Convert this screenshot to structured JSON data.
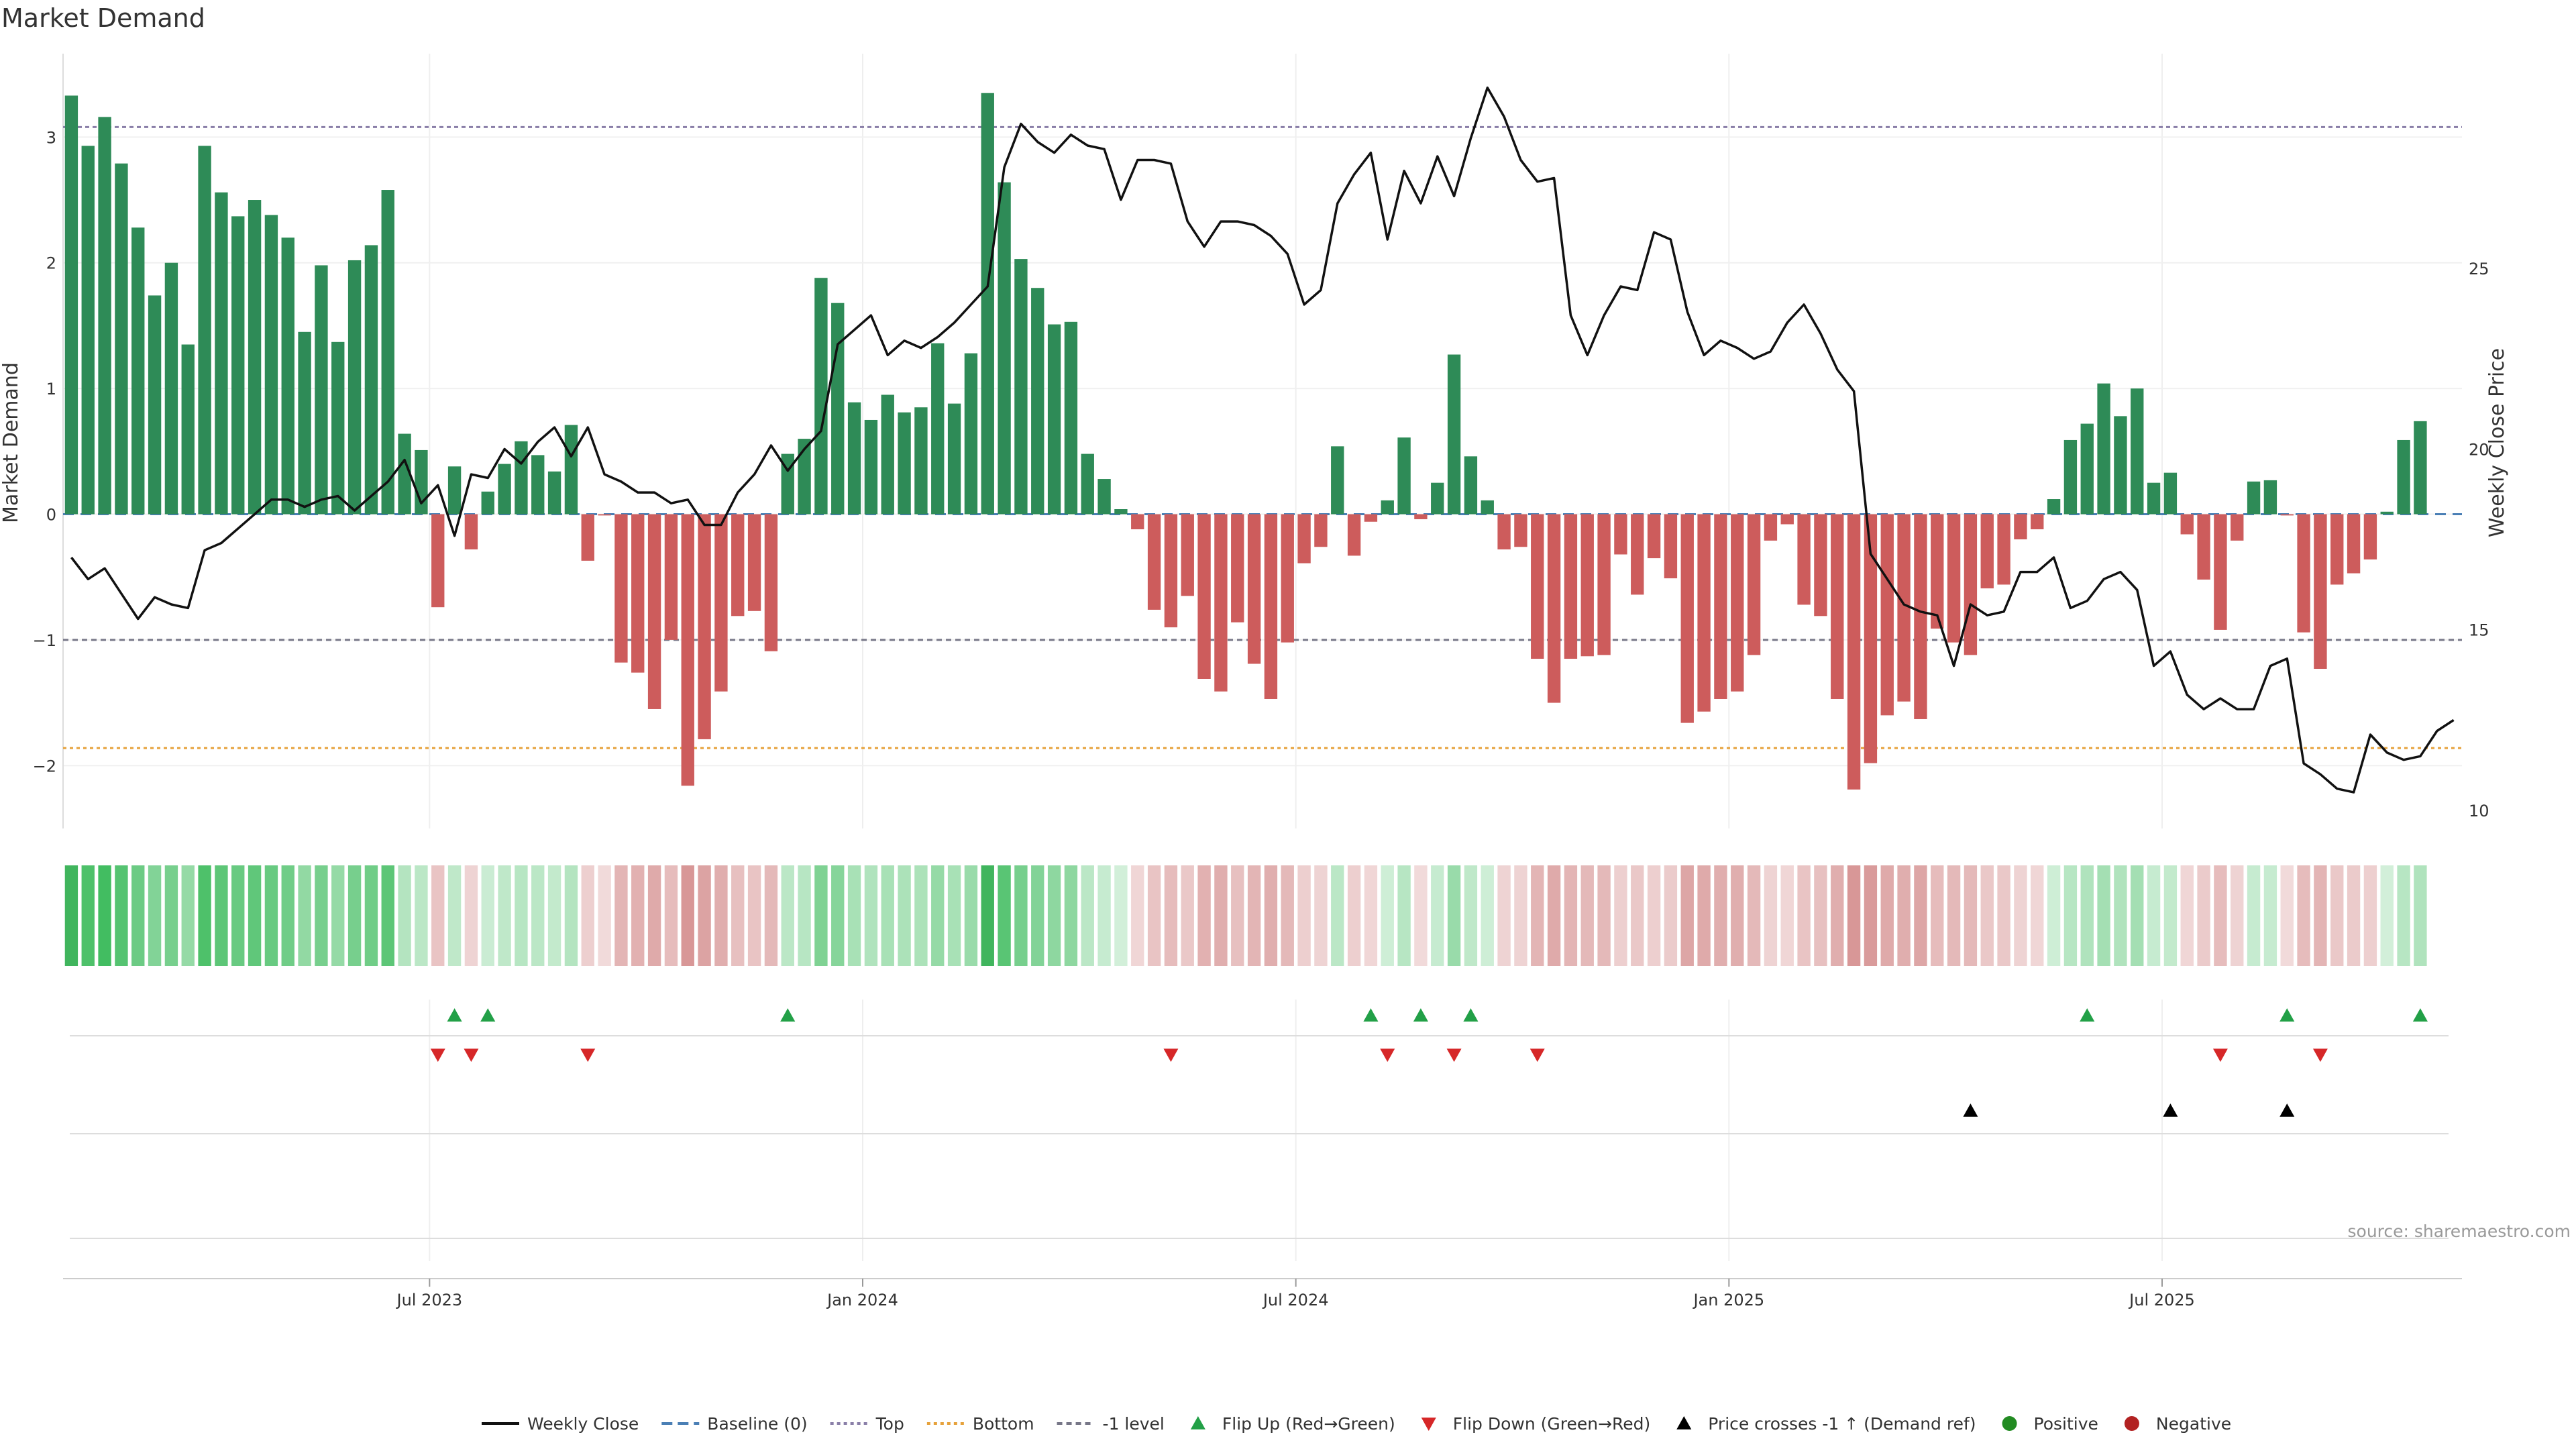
{
  "chart_data": {
    "type": "bar",
    "title": "Market Demand",
    "ylabel": "Market Demand",
    "y2label": "Weekly Close Price",
    "ylim": [
      -2.5,
      3.45
    ],
    "y_ticks": [
      -2,
      -1,
      0,
      1,
      2,
      3
    ],
    "y2lim": [
      9.5,
      30.2
    ],
    "y2_ticks": [
      10,
      15,
      20,
      25
    ],
    "reference_lines": {
      "top": 3.08,
      "bottom": -1.86,
      "minus_one": -1
    },
    "date_ticks": [
      "Jul 2023",
      "Jan 2024",
      "Jul 2024",
      "Jan 2025",
      "Jul 2025"
    ],
    "date_tick_weeks": [
      22,
      48,
      74,
      100,
      126
    ],
    "weeks": 144,
    "demand": [
      3.33,
      2.93,
      3.16,
      2.79,
      2.28,
      1.74,
      2.0,
      1.35,
      2.93,
      2.56,
      2.37,
      2.5,
      2.38,
      2.2,
      1.45,
      1.98,
      1.37,
      2.02,
      2.14,
      2.58,
      0.64,
      0.51,
      -0.74,
      0.38,
      -0.28,
      0.18,
      0.4,
      0.58,
      0.47,
      0.34,
      0.71,
      -0.37,
      -0.01,
      -1.18,
      -1.26,
      -1.55,
      -1.0,
      -2.16,
      -1.79,
      -1.41,
      -0.81,
      -0.77,
      -1.09,
      0.48,
      0.6,
      1.88,
      1.68,
      0.89,
      0.75,
      0.95,
      0.81,
      0.85,
      1.36,
      0.88,
      1.28,
      3.35,
      2.64,
      2.03,
      1.8,
      1.51,
      1.53,
      0.48,
      0.28,
      0.04,
      -0.12,
      -0.76,
      -0.9,
      -0.65,
      -1.31,
      -1.41,
      -0.86,
      -1.19,
      -1.47,
      -1.02,
      -0.39,
      -0.26,
      0.54,
      -0.33,
      -0.06,
      0.11,
      0.61,
      -0.04,
      0.25,
      1.27,
      0.46,
      0.11,
      -0.28,
      -0.26,
      -1.15,
      -1.5,
      -1.15,
      -1.13,
      -1.12,
      -0.32,
      -0.64,
      -0.35,
      -0.51,
      -1.66,
      -1.57,
      -1.47,
      -1.41,
      -1.12,
      -0.21,
      -0.08,
      -0.72,
      -0.81,
      -1.47,
      -2.19,
      -1.98,
      -1.6,
      -1.49,
      -1.63,
      -0.91,
      -1.02,
      -1.12,
      -0.59,
      -0.56,
      -0.2,
      -0.12,
      0.12,
      0.59,
      0.72,
      1.04,
      0.78,
      1.0,
      0.25,
      0.33,
      -0.16,
      -0.52,
      -0.92,
      -0.21,
      0.26,
      0.27,
      -0.01,
      -0.94,
      -1.23,
      -0.56,
      -0.47,
      -0.36,
      0.02,
      0.59,
      0.74
    ],
    "price": [
      17.0,
      16.4,
      16.7,
      16.0,
      15.3,
      15.9,
      15.7,
      15.6,
      17.2,
      17.4,
      17.8,
      18.2,
      18.6,
      18.6,
      18.4,
      18.6,
      18.7,
      18.3,
      18.7,
      19.1,
      19.7,
      18.5,
      19.0,
      17.6,
      19.3,
      19.2,
      20.0,
      19.6,
      20.2,
      20.6,
      19.8,
      20.6,
      19.3,
      19.1,
      18.8,
      18.8,
      18.5,
      18.6,
      17.9,
      17.9,
      18.8,
      19.3,
      20.1,
      19.4,
      20.0,
      20.5,
      22.9,
      23.3,
      23.7,
      22.6,
      23.0,
      22.8,
      23.1,
      23.5,
      24.0,
      24.5,
      27.8,
      29.0,
      28.5,
      28.2,
      28.7,
      28.4,
      28.3,
      26.9,
      28.0,
      28.0,
      27.9,
      26.3,
      25.6,
      26.3,
      26.3,
      26.2,
      25.9,
      25.4,
      24.0,
      24.4,
      26.8,
      27.6,
      28.2,
      25.8,
      27.7,
      26.8,
      28.1,
      27.0,
      28.6,
      30.0,
      29.2,
      28.0,
      27.4,
      27.5,
      23.7,
      22.6,
      23.7,
      24.5,
      24.4,
      26.0,
      25.8,
      23.8,
      22.6,
      23.0,
      22.8,
      22.5,
      22.7,
      23.5,
      24.0,
      23.2,
      22.2,
      21.6,
      17.1,
      16.4,
      15.7,
      15.5,
      15.4,
      14.0,
      15.7,
      15.4,
      15.5,
      16.6,
      16.6,
      17.0,
      15.6,
      15.8,
      16.4,
      16.6,
      16.1,
      14.0,
      14.4,
      13.2,
      12.8,
      13.1,
      12.8,
      12.8,
      14.0,
      14.2,
      11.3,
      11.0,
      10.6,
      10.5,
      12.1,
      11.6,
      11.4,
      11.5,
      12.2,
      12.5
    ],
    "flip_up_weeks": [
      23,
      25,
      43,
      78,
      81,
      84,
      121,
      133,
      141
    ],
    "flip_down_weeks": [
      22,
      24,
      31,
      66,
      79,
      83,
      88,
      129,
      135
    ],
    "price_cross_weeks": [
      114,
      126,
      133
    ],
    "legend": [
      {
        "key": "weekly_close",
        "label": "Weekly Close"
      },
      {
        "key": "baseline",
        "label": "Baseline (0)"
      },
      {
        "key": "top",
        "label": "Top"
      },
      {
        "key": "bottom",
        "label": "Bottom"
      },
      {
        "key": "minus_one",
        "label": "-1 level"
      },
      {
        "key": "flip_up",
        "label": "Flip Up (Red→Green)"
      },
      {
        "key": "flip_down",
        "label": "Flip Down (Green→Red)"
      },
      {
        "key": "price_cross",
        "label": "Price crosses -1 ↑ (Demand ref)"
      },
      {
        "key": "positive",
        "label": "Positive"
      },
      {
        "key": "negative",
        "label": "Negative"
      }
    ],
    "legend_position": "bottom-center",
    "colors": {
      "positive": "#2e8b57",
      "negative": "#cd5c5c",
      "price": "#111111",
      "baseline": "#4a7fb5",
      "top": "#8a7fa8",
      "bottom": "#e6a23c",
      "minus_one": "#777788",
      "flip_up": "#22a047",
      "flip_down": "#d62728",
      "cross": "#000000",
      "legend_positive": "#228b22",
      "legend_negative": "#b22222"
    }
  },
  "source": "source: sharemaestro.com"
}
